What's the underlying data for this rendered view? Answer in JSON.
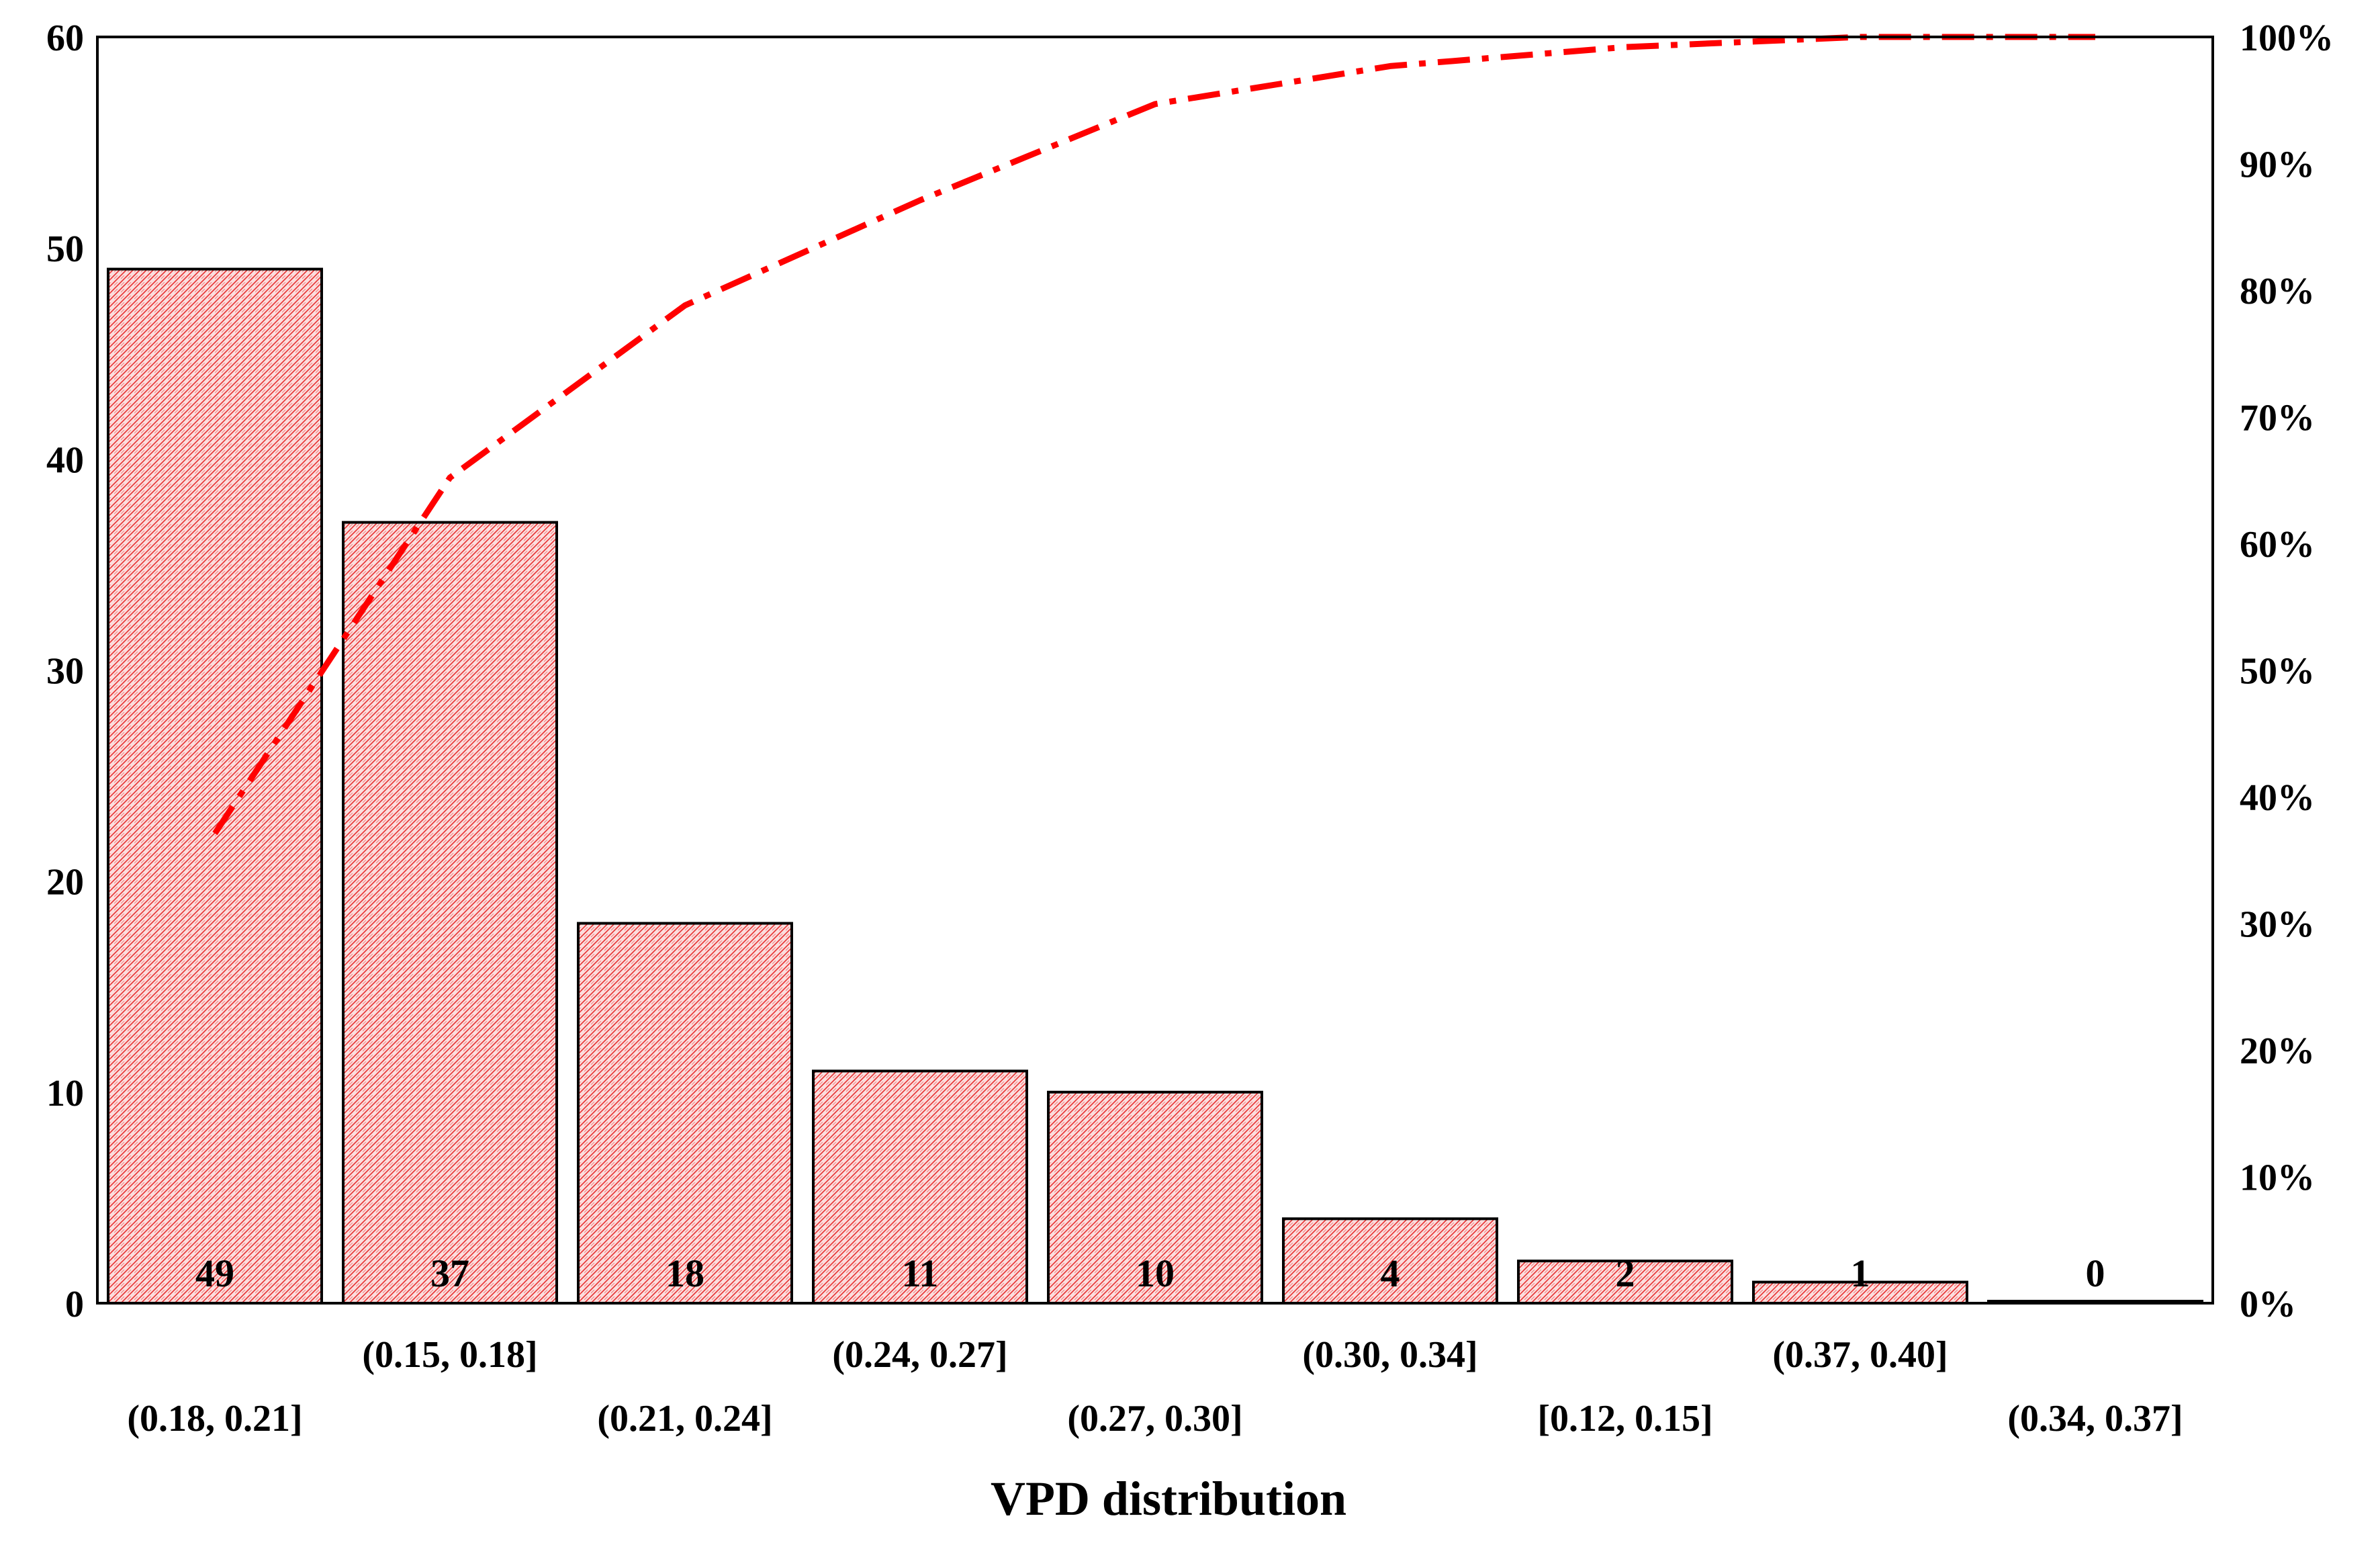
{
  "chart_data": {
    "type": "bar",
    "title": "",
    "xlabel": "VPD distribution",
    "ylabel": "",
    "categories": [
      "(0.18, 0.21]",
      "(0.15, 0.18]",
      "(0.21, 0.24]",
      "(0.24, 0.27]",
      "(0.27, 0.30]",
      "(0.30, 0.34]",
      "[0.12, 0.15]",
      "(0.37, 0.40]",
      "(0.34, 0.37]"
    ],
    "values": [
      49,
      37,
      18,
      11,
      10,
      4,
      2,
      1,
      0
    ],
    "cumulative_percent": [
      37.1,
      65.2,
      78.8,
      87.1,
      94.7,
      97.7,
      99.2,
      100,
      100
    ],
    "ylim": [
      0,
      60
    ],
    "y_ticks": [
      "0",
      "10",
      "20",
      "30",
      "40",
      "50",
      "60"
    ],
    "y2lim": [
      0,
      100
    ],
    "y2_ticks": [
      "0%",
      "10%",
      "20%",
      "30%",
      "40%",
      "50%",
      "60%",
      "70%",
      "80%",
      "90%",
      "100%"
    ],
    "bar_fill": "#f6b3b3",
    "bar_pattern_color": "#e83030",
    "line_color": "#ff0000",
    "grid": false,
    "legend": "none"
  }
}
